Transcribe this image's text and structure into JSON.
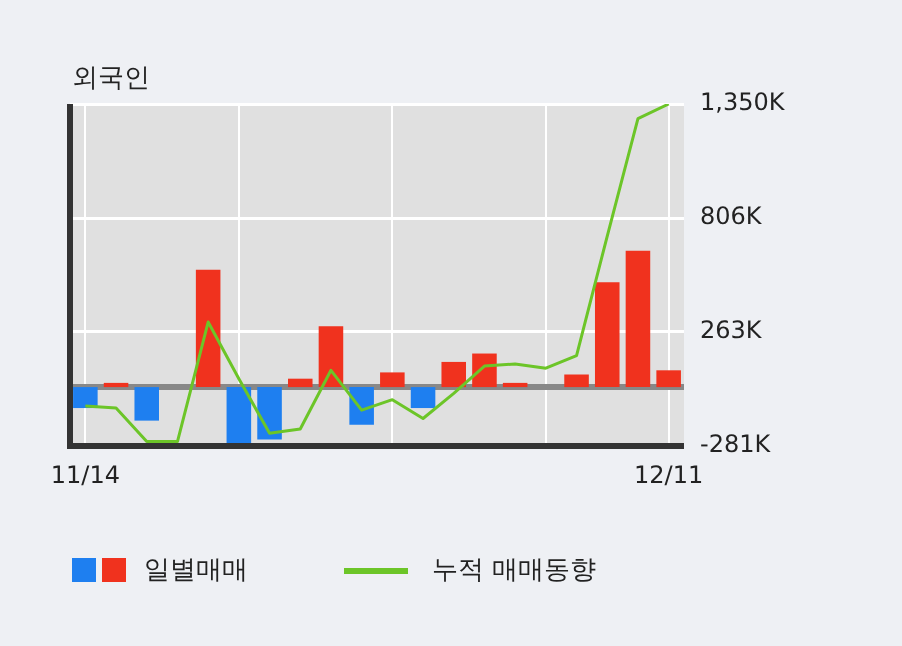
{
  "chart_data": {
    "type": "bar",
    "title": "외국인",
    "categories": [
      "11/14",
      null,
      null,
      null,
      null,
      null,
      null,
      null,
      null,
      null,
      null,
      null,
      null,
      null,
      null,
      null,
      null,
      null,
      null,
      "12/11"
    ],
    "series": [
      {
        "name": "일별매매",
        "colors": [
          "#1e7ff0",
          "#f0321e",
          "#1e7ff0",
          "#f0321e",
          "#f0321e",
          "#1e7ff0",
          "#1e7ff0",
          "#f0321e",
          "#f0321e",
          "#1e7ff0",
          "#f0321e",
          "#1e7ff0",
          "#f0321e",
          "#f0321e",
          "#f0321e",
          "#f0321e",
          "#f0321e",
          "#f0321e",
          "#f0321e",
          "#f0321e"
        ],
        "values": [
          -100,
          20,
          -160,
          0,
          560,
          -280,
          -250,
          40,
          290,
          -180,
          70,
          -100,
          120,
          160,
          20,
          0,
          60,
          500,
          650,
          80
        ]
      },
      {
        "name": "누적 매매동향",
        "type": "line",
        "color": "#6cc528",
        "values": [
          -90,
          -100,
          -260,
          -260,
          310,
          40,
          -220,
          -200,
          80,
          -110,
          -60,
          -150,
          -30,
          100,
          110,
          90,
          150,
          720,
          1280,
          1350
        ]
      }
    ],
    "ylim": [
      -281,
      1350
    ],
    "yticks": [
      {
        "value": -281,
        "label": "-281K"
      },
      {
        "value": 263,
        "label": "263K"
      },
      {
        "value": 806,
        "label": "806K"
      },
      {
        "value": 1350,
        "label": "1,350K"
      }
    ],
    "ref_lines": [
      {
        "axis": "y",
        "value": 0,
        "color": "#888888"
      }
    ],
    "grid": true,
    "legend": "bottom",
    "marker": "none"
  }
}
